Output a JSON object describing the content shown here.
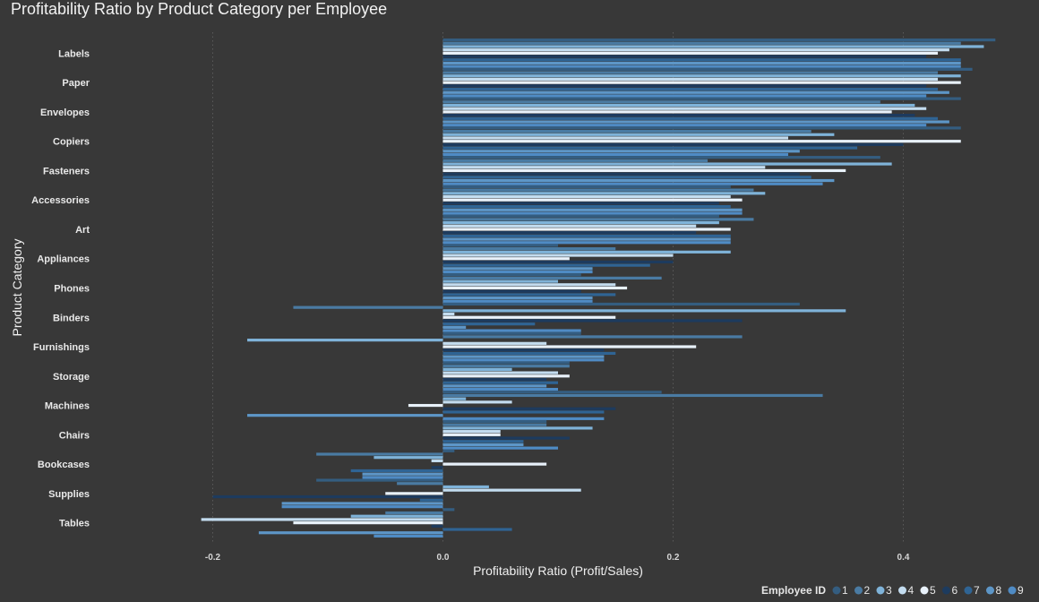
{
  "chart_data": {
    "type": "bar",
    "orientation": "horizontal",
    "title": "Profitability Ratio by Product Category per Employee",
    "xlabel": "Profitability Ratio (Profit/Sales)",
    "ylabel": "Product Category",
    "xlim": [
      -0.3,
      0.5
    ],
    "xticks": [
      -0.2,
      0.0,
      0.2,
      0.4
    ],
    "xtick_labels": [
      "-0.2",
      "0.0",
      "0.2",
      "0.4"
    ],
    "grid": "vertical dotted",
    "legend_title": "Employee ID",
    "legend_position": "bottom-right",
    "categories": [
      "Labels",
      "Paper",
      "Envelopes",
      "Copiers",
      "Fasteners",
      "Accessories",
      "Art",
      "Appliances",
      "Phones",
      "Binders",
      "Furnishings",
      "Storage",
      "Machines",
      "Chairs",
      "Bookcases",
      "Supplies",
      "Tables"
    ],
    "series": [
      {
        "name": "1",
        "color": "#345d80",
        "values": [
          0.48,
          0.46,
          0.45,
          0.45,
          0.38,
          0.25,
          0.24,
          0.1,
          0.12,
          0.31,
          0.12,
          0.11,
          0.19,
          0.09,
          0.01,
          -0.11,
          0.01
        ]
      },
      {
        "name": "2",
        "color": "#4a7ba3",
        "values": [
          0.45,
          0.43,
          0.38,
          0.32,
          0.23,
          0.27,
          0.27,
          0.15,
          0.19,
          -0.13,
          0.26,
          0.11,
          0.33,
          0.09,
          -0.11,
          -0.04,
          -0.05
        ]
      },
      {
        "name": "3",
        "color": "#7fb3d9",
        "values": [
          0.47,
          0.45,
          0.41,
          0.34,
          0.39,
          0.28,
          0.24,
          0.25,
          0.1,
          0.35,
          -0.17,
          0.06,
          0.02,
          0.13,
          -0.06,
          0.04,
          -0.08
        ]
      },
      {
        "name": "4",
        "color": "#c3dcef",
        "values": [
          0.44,
          0.43,
          0.42,
          0.3,
          0.28,
          0.25,
          0.22,
          0.2,
          0.15,
          0.01,
          0.09,
          0.1,
          0.06,
          0.05,
          -0.01,
          0.12,
          -0.21
        ]
      },
      {
        "name": "5",
        "color": "#e8f1fa",
        "values": [
          0.43,
          0.45,
          0.39,
          0.45,
          0.35,
          0.26,
          0.25,
          0.11,
          0.16,
          0.15,
          0.22,
          0.11,
          -0.03,
          0.05,
          0.09,
          -0.05,
          -0.13
        ]
      },
      {
        "name": "6",
        "color": "#1d3b5e",
        "values": [
          0.42,
          0.42,
          0.41,
          0.4,
          0.31,
          0.24,
          0.22,
          0.2,
          0.12,
          0.26,
          0.14,
          0.09,
          0.15,
          0.11,
          -0.01,
          -0.2,
          -0.01
        ]
      },
      {
        "name": "7",
        "color": "#2f6494",
        "values": [
          0.45,
          0.43,
          0.43,
          0.36,
          0.32,
          0.25,
          0.25,
          0.18,
          0.15,
          0.08,
          0.15,
          0.1,
          0.14,
          0.07,
          -0.08,
          -0.02,
          0.06
        ]
      },
      {
        "name": "8",
        "color": "#5d96c7",
        "values": [
          0.45,
          0.44,
          0.44,
          0.31,
          0.34,
          0.26,
          0.25,
          0.13,
          0.13,
          0.02,
          0.14,
          0.09,
          -0.17,
          0.07,
          -0.07,
          -0.14,
          -0.16
        ]
      },
      {
        "name": "9",
        "color": "#4f8bc4",
        "values": [
          0.45,
          0.42,
          0.42,
          0.3,
          0.33,
          0.26,
          0.25,
          0.13,
          0.13,
          0.12,
          0.14,
          0.1,
          0.14,
          0.1,
          -0.07,
          -0.14,
          -0.06
        ]
      }
    ]
  }
}
